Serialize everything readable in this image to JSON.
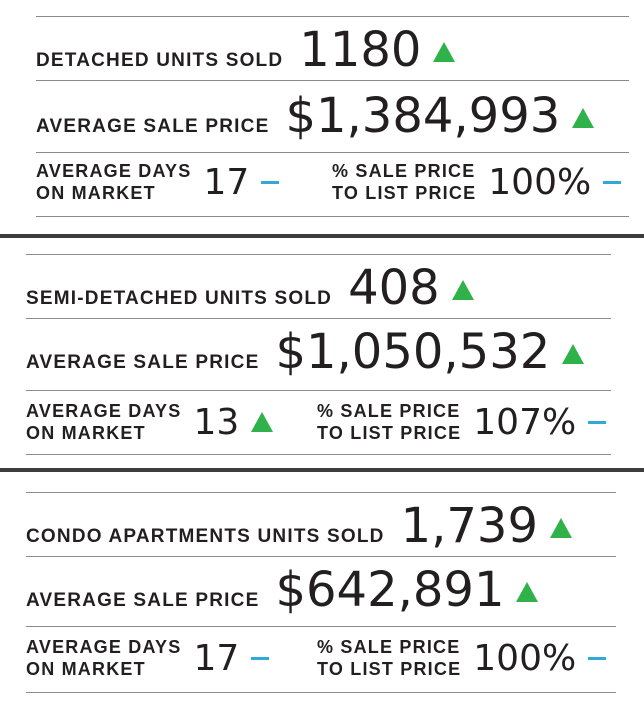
{
  "sections": [
    {
      "units_label": "DETACHED UNITS SOLD",
      "units_value": "1180",
      "units_trend": "up",
      "price_label": "AVERAGE SALE PRICE",
      "price_value": "$1,384,993",
      "price_trend": "up",
      "dom_label_line1": "AVERAGE DAYS",
      "dom_label_line2": "ON MARKET",
      "dom_value": "17",
      "dom_trend": "flat",
      "ratio_label_line1": "% SALE PRICE",
      "ratio_label_line2": "TO LIST PRICE",
      "ratio_value": "100%",
      "ratio_trend": "flat"
    },
    {
      "units_label": "SEMI-DETACHED UNITS SOLD",
      "units_value": "408",
      "units_trend": "up",
      "price_label": "AVERAGE SALE PRICE",
      "price_value": "$1,050,532",
      "price_trend": "up",
      "dom_label_line1": "AVERAGE DAYS",
      "dom_label_line2": "ON MARKET",
      "dom_value": "13",
      "dom_trend": "up",
      "ratio_label_line1": "% SALE PRICE",
      "ratio_label_line2": "TO LIST PRICE",
      "ratio_value": "107%",
      "ratio_trend": "flat"
    },
    {
      "units_label": "CONDO APARTMENTS UNITS SOLD",
      "units_value": "1,739",
      "units_trend": "up",
      "price_label": "AVERAGE SALE PRICE",
      "price_value": "$642,891",
      "price_trend": "up",
      "dom_label_line1": "AVERAGE DAYS",
      "dom_label_line2": "ON MARKET",
      "dom_value": "17",
      "dom_trend": "flat",
      "ratio_label_line1": "% SALE PRICE",
      "ratio_label_line2": "TO LIST PRICE",
      "ratio_value": "100%",
      "ratio_trend": "flat"
    }
  ],
  "colors": {
    "up": "#2fb24a",
    "flat": "#31a9d8",
    "rule": "#8a8a8a",
    "divider": "#3d3d3d",
    "text": "#231f20"
  }
}
